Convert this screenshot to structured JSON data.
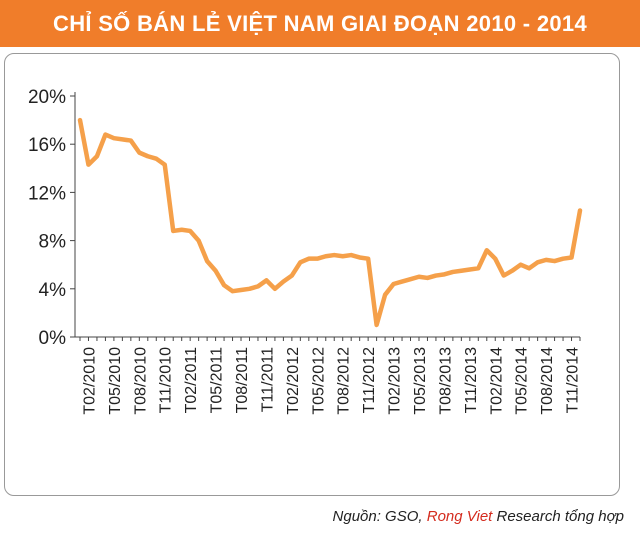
{
  "header": {
    "title": "CHỈ SỐ BÁN LẺ VIỆT NAM GIAI ĐOẠN  2010 - 2014"
  },
  "source": {
    "prefix": "Nguồn: GSO, ",
    "brand": "Rong Viet",
    "suffix": " Research tổng hợp"
  },
  "colors": {
    "header_bg": "#F07D2A",
    "line": "#F5A04A",
    "brand_text": "#D42B1E"
  },
  "chart_data": {
    "type": "line",
    "title": "CHỈ SỐ BÁN LẺ VIỆT NAM GIAI ĐOẠN  2010 - 2014",
    "xlabel": "",
    "ylabel": "",
    "ylim": [
      0,
      20
    ],
    "yticks": [
      "0%",
      "4%",
      "8%",
      "12%",
      "16%",
      "20%"
    ],
    "ytick_values": [
      0,
      4,
      8,
      12,
      16,
      20
    ],
    "grid": false,
    "legend": "none",
    "x_tick_labels": [
      "T02/2010",
      "T05/2010",
      "T08/2010",
      "T11/2010",
      "T02/2011",
      "T05/2011",
      "T08/2011",
      "T11/2011",
      "T02/2012",
      "T05/2012",
      "T08/2012",
      "T11/2012",
      "T02/2013",
      "T05/2013",
      "T08/2013",
      "T11/2013",
      "T02/2014",
      "T05/2014",
      "T08/2014",
      "T11/2014"
    ],
    "series": [
      {
        "x": [
          "T01/2010",
          "T02/2010",
          "T03/2010",
          "T04/2010",
          "T05/2010",
          "T06/2010",
          "T07/2010",
          "T08/2010",
          "T09/2010",
          "T10/2010",
          "T11/2010",
          "T12/2010",
          "T01/2011",
          "T02/2011",
          "T03/2011",
          "T04/2011",
          "T05/2011",
          "T06/2011",
          "T07/2011",
          "T08/2011",
          "T09/2011",
          "T10/2011",
          "T11/2011",
          "T12/2011",
          "T01/2012",
          "T02/2012",
          "T03/2012",
          "T04/2012",
          "T05/2012",
          "T06/2012",
          "T07/2012",
          "T08/2012",
          "T09/2012",
          "T10/2012",
          "T11/2012",
          "T12/2012",
          "T01/2013",
          "T02/2013",
          "T03/2013",
          "T04/2013",
          "T05/2013",
          "T06/2013",
          "T07/2013",
          "T08/2013",
          "T09/2013",
          "T10/2013",
          "T11/2013",
          "T12/2013",
          "T01/2014",
          "T02/2014",
          "T03/2014",
          "T04/2014",
          "T05/2014",
          "T06/2014",
          "T07/2014",
          "T08/2014",
          "T09/2014",
          "T10/2014",
          "T11/2014",
          "T12/2014"
        ],
        "values": [
          18.0,
          14.3,
          15.0,
          16.8,
          16.5,
          16.4,
          16.3,
          15.3,
          15.0,
          14.8,
          14.3,
          8.8,
          8.9,
          8.8,
          8.0,
          6.3,
          5.5,
          4.3,
          3.8,
          3.9,
          4.0,
          4.2,
          4.7,
          4.0,
          4.6,
          5.1,
          6.2,
          6.5,
          6.5,
          6.7,
          6.8,
          6.7,
          6.8,
          6.6,
          6.5,
          1.0,
          3.5,
          4.4,
          4.6,
          4.8,
          5.0,
          4.9,
          5.1,
          5.2,
          5.4,
          5.5,
          5.6,
          5.7,
          7.2,
          6.5,
          5.1,
          5.5,
          6.0,
          5.7,
          6.2,
          6.4,
          6.3,
          6.5,
          6.6,
          10.5
        ]
      }
    ]
  }
}
